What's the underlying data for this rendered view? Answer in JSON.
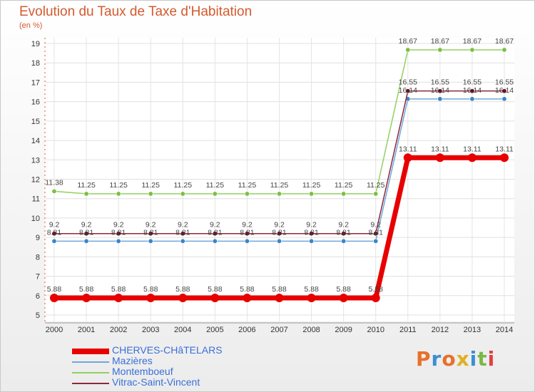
{
  "title": "Evolution du Taux de Taxe d'Habitation",
  "unit": "(en %)",
  "logo": {
    "text": "Proxiti",
    "colors": [
      "#e8702a",
      "#3a8fd4",
      "#e8702a",
      "#e0b020",
      "#3a8fd4",
      "#7ab848",
      "#e04040"
    ]
  },
  "chart_data": {
    "type": "line",
    "title": "Evolution du Taux de Taxe d'Habitation",
    "ylabel": "(en %)",
    "xlabel": "",
    "ylim": [
      5,
      19
    ],
    "yticks": [
      5,
      6,
      7,
      8,
      9,
      10,
      11,
      12,
      13,
      14,
      15,
      16,
      17,
      18,
      19
    ],
    "categories": [
      "2000",
      "2001",
      "2002",
      "2003",
      "2004",
      "2005",
      "2006",
      "2007",
      "2008",
      "2009",
      "2010",
      "2011",
      "2012",
      "2013",
      "2014"
    ],
    "series": [
      {
        "name": "CHERVES-CHâTELARS",
        "color": "#e80000",
        "marker": "#e80000",
        "values": [
          5.88,
          5.88,
          5.88,
          5.88,
          5.88,
          5.88,
          5.88,
          5.88,
          5.88,
          5.88,
          5.88,
          13.11,
          13.11,
          13.11,
          13.11
        ],
        "labels": [
          "5.88",
          "5.88",
          "5.88",
          "5.88",
          "5.88",
          "5.88",
          "5.88",
          "5.88",
          "5.88",
          "5.88",
          "5.88",
          "13.11",
          "13.11",
          "13.11",
          "13.11"
        ]
      },
      {
        "name": "Mazières",
        "color": "#6fa8dc",
        "marker": "#3d85c6",
        "values": [
          8.81,
          8.81,
          8.81,
          8.81,
          8.81,
          8.81,
          8.81,
          8.81,
          8.81,
          8.81,
          8.81,
          16.14,
          16.14,
          16.14,
          16.14
        ],
        "labels": [
          "8.81",
          "8.81",
          "8.81",
          "8.81",
          "8.81",
          "8.81",
          "8.81",
          "8.81",
          "8.81",
          "8.81",
          "8.81",
          "16.14",
          "16.14",
          "16.14",
          "16.14"
        ]
      },
      {
        "name": "Montemboeuf",
        "color": "#93d060",
        "marker": "#7ac043",
        "values": [
          11.38,
          11.25,
          11.25,
          11.25,
          11.25,
          11.25,
          11.25,
          11.25,
          11.25,
          11.25,
          11.25,
          18.67,
          18.67,
          18.67,
          18.67
        ],
        "labels": [
          "11.38",
          "11.25",
          "11.25",
          "11.25",
          "11.25",
          "11.25",
          "11.25",
          "11.25",
          "11.25",
          "11.25",
          "11.25",
          "18.67",
          "18.67",
          "18.67",
          "18.67"
        ]
      },
      {
        "name": "Vitrac-Saint-Vincent",
        "color": "#8b2a3a",
        "marker": "#6b1020",
        "values": [
          9.2,
          9.2,
          9.2,
          9.2,
          9.2,
          9.2,
          9.2,
          9.2,
          9.2,
          9.2,
          9.2,
          16.55,
          16.55,
          16.55,
          16.55
        ],
        "labels": [
          "9.2",
          "9.2",
          "9.2",
          "9.2",
          "9.2",
          "9.2",
          "9.2",
          "9.2",
          "9.2",
          "9.2",
          "9.2",
          "16.55",
          "16.55",
          "16.55",
          "16.55"
        ]
      }
    ]
  }
}
